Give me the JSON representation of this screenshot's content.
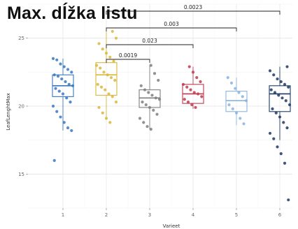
{
  "title": "Max. dĺžka listu",
  "chart_data": {
    "type": "boxplot",
    "xlabel": "Varieet",
    "ylabel": "LeafLenghtMax",
    "categories": [
      "1",
      "2",
      "3",
      "4",
      "5",
      "6"
    ],
    "yticks": [
      15,
      20,
      25
    ],
    "ylim": [
      12.5,
      27.5
    ],
    "grid": true,
    "colors": [
      "#3a78c0",
      "#d8b93a",
      "#7f7f7f",
      "#c0394f",
      "#8ab4df",
      "#1e3a64"
    ],
    "series": [
      {
        "category": "1",
        "stats": {
          "min": 18.2,
          "q1": 20.7,
          "median": 21.5,
          "q3": 22.3,
          "max": 23.5
        },
        "points": [
          23.5,
          23.4,
          23.1,
          22.9,
          22.7,
          22.5,
          22.3,
          22.2,
          22.0,
          21.8,
          21.6,
          21.5,
          21.3,
          21.1,
          20.9,
          20.6,
          20.3,
          20.0,
          19.6,
          19.2,
          18.8,
          18.4,
          18.2,
          16.0
        ]
      },
      {
        "category": "2",
        "stats": {
          "min": 19.0,
          "q1": 20.8,
          "median": 22.3,
          "q3": 23.2,
          "max": 25.5
        },
        "points": [
          25.5,
          25.0,
          24.6,
          24.2,
          23.9,
          23.6,
          23.3,
          23.0,
          22.8,
          22.5,
          22.3,
          22.1,
          21.9,
          21.6,
          21.4,
          21.2,
          20.9,
          20.7,
          20.3,
          19.9,
          19.5,
          19.1,
          18.8
        ]
      },
      {
        "category": "3",
        "stats": {
          "min": 18.3,
          "q1": 19.9,
          "median": 20.6,
          "q3": 21.2,
          "max": 23.0
        },
        "points": [
          23.0,
          22.4,
          21.9,
          21.5,
          21.2,
          21.0,
          20.8,
          20.6,
          20.5,
          20.3,
          20.1,
          19.9,
          19.7,
          19.4,
          19.1,
          18.8,
          18.5,
          18.3
        ]
      },
      {
        "category": "4",
        "stats": {
          "min": 19.8,
          "q1": 20.2,
          "median": 20.9,
          "q3": 21.6,
          "max": 22.9
        },
        "points": [
          22.9,
          22.5,
          22.1,
          21.8,
          21.6,
          21.4,
          21.2,
          21.0,
          20.9,
          20.7,
          20.5,
          20.3,
          20.1,
          19.9
        ]
      },
      {
        "category": "5",
        "stats": {
          "min": 18.6,
          "q1": 19.6,
          "median": 20.4,
          "q3": 21.1,
          "max": 22.1
        },
        "points": [
          22.1,
          21.7,
          21.3,
          21.0,
          20.7,
          20.4,
          20.1,
          19.8,
          19.5,
          19.1,
          18.7
        ]
      },
      {
        "category": "6",
        "stats": {
          "min": 17.5,
          "q1": 19.6,
          "median": 20.9,
          "q3": 21.5,
          "max": 22.9
        },
        "points": [
          22.9,
          22.6,
          22.3,
          22.0,
          21.8,
          21.6,
          21.4,
          21.2,
          21.0,
          20.8,
          20.6,
          20.4,
          20.1,
          19.8,
          19.5,
          19.2,
          18.8,
          18.4,
          18.0,
          17.6,
          17.0,
          16.5,
          15.8,
          13.1
        ]
      }
    ],
    "significance": [
      {
        "from": "2",
        "to": "3",
        "label": "0.0019"
      },
      {
        "from": "2",
        "to": "4",
        "label": "0.023"
      },
      {
        "from": "2",
        "to": "5",
        "label": "0.003"
      },
      {
        "from": "2",
        "to": "6",
        "label": "0.0023"
      }
    ]
  }
}
